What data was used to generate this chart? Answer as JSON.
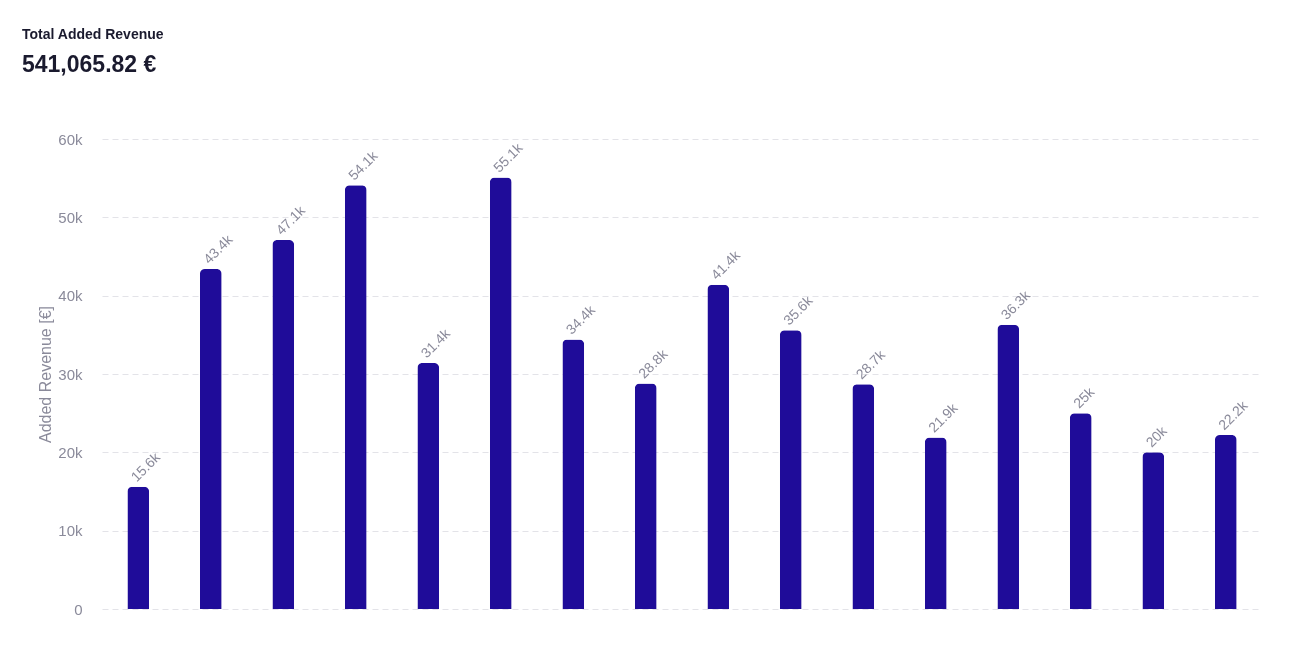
{
  "chart_data": {
    "type": "bar",
    "title": "Total Added Revenue",
    "subtitle": "541,065.82 €",
    "ylabel": "Added Revenue [€]",
    "categories": [
      null,
      null,
      null,
      null,
      null,
      null,
      null,
      null,
      null,
      null,
      null,
      null,
      null,
      null,
      null,
      null
    ],
    "values": [
      15600,
      43400,
      47100,
      54100,
      31400,
      55100,
      34400,
      28800,
      41400,
      35600,
      28700,
      21900,
      36300,
      25000,
      20000,
      22200
    ],
    "value_labels": [
      "15.6k",
      "43.4k",
      "47.1k",
      "54.1k",
      "31.4k",
      "55.1k",
      "34.4k",
      "28.8k",
      "41.4k",
      "35.6k",
      "28.7k",
      "21.9k",
      "36.3k",
      "25k",
      "20k",
      "22.2k"
    ],
    "color": "#1f0c99",
    "ylim": [
      0,
      60000
    ],
    "yticks": [
      0,
      {
        "value": 10000,
        "label": "10k"
      },
      {
        "value": 20000,
        "label": "20k"
      },
      {
        "value": 30000,
        "label": "30k"
      },
      {
        "value": 40000,
        "label": "40k"
      },
      {
        "value": 50000,
        "label": "50k"
      },
      {
        "value": 60000,
        "label": "60k"
      }
    ],
    "grid": "y",
    "tick_labels": "y"
  }
}
